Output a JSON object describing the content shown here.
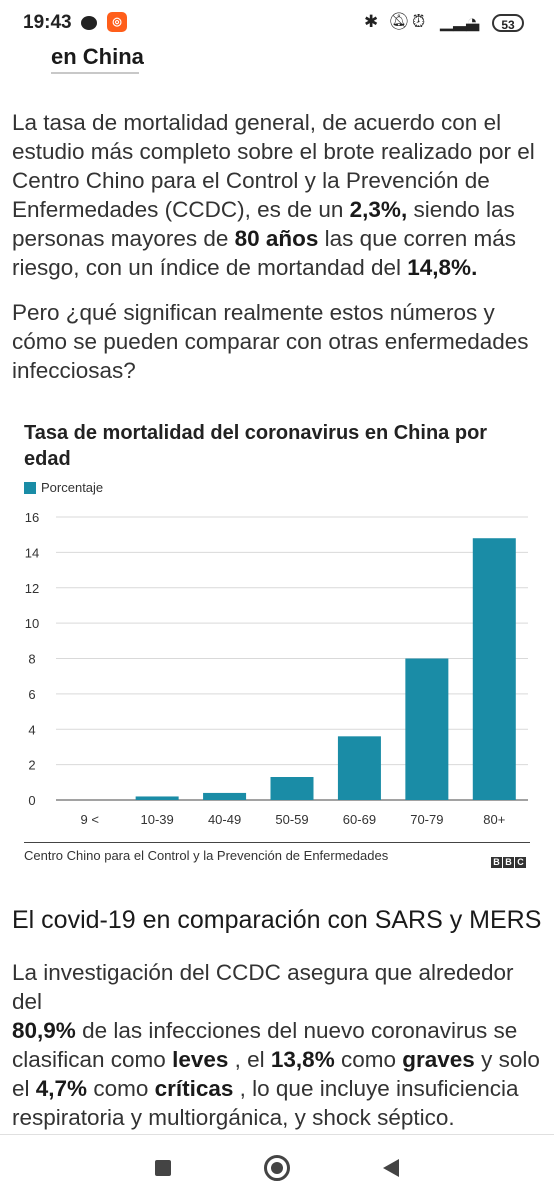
{
  "status_bar": {
    "time": "19:43",
    "battery": "53"
  },
  "section_heading": "en China",
  "paragraph1": {
    "l1": "La tasa de mortalidad general, de acuerdo con el",
    "l2": "estudio más completo sobre el brote realizado por el",
    "l3": "Centro Chino para el Control y la Prevención de",
    "l4a": "Enfermedades (CCDC), es de un ",
    "l4b": "2,3%,",
    "l4c": " siendo las",
    "l5a": "personas mayores de ",
    "l5b": "80 años",
    "l5c": " las que corren más",
    "l6a": "riesgo, con un índice de mortandad del ",
    "l6b": "14,8%."
  },
  "paragraph2": {
    "l1": "Pero ¿qué significan realmente estos números y",
    "l2": "cómo se pueden comparar con otras enfermedades",
    "l3": "infecciosas?"
  },
  "chart_data": {
    "type": "bar",
    "title": "Tasa de mortalidad del coronavirus en China por edad",
    "legend": "Porcentaje",
    "categories": [
      "9 <",
      "10-39",
      "40-49",
      "50-59",
      "60-69",
      "70-79",
      "80+"
    ],
    "values": [
      0,
      0.2,
      0.4,
      1.3,
      3.6,
      8.0,
      14.8
    ],
    "ylim": [
      0,
      16
    ],
    "yticks": [
      "0",
      "2",
      "4",
      "6",
      "8",
      "10",
      "12",
      "14",
      "16"
    ],
    "bar_color": "#1a8ca6",
    "grid": true,
    "source": "Centro Chino para el Control y la Prevención de Enfermedades",
    "logo": "BBC"
  },
  "heading2": "El covid-19 en comparación con SARS y MERS",
  "paragraph3": {
    "l1": "La investigación del CCDC asegura que alrededor del",
    "l2a": "80,9%",
    "l2b": " de las infecciones del nuevo coronavirus se",
    "l3a": "clasifican como ",
    "l3b": "leves",
    "l3c": " , el ",
    "l3d": "13,8%",
    "l3e": " como ",
    "l3f": "graves",
    "l3g": " y solo",
    "l4a": "el ",
    "l4b": "4,7%",
    "l4c": " como ",
    "l4d": "críticas",
    "l4e": " , lo que incluye insuficiencia",
    "l5": "respiratoria y multiorgánica, y shock séptico."
  }
}
